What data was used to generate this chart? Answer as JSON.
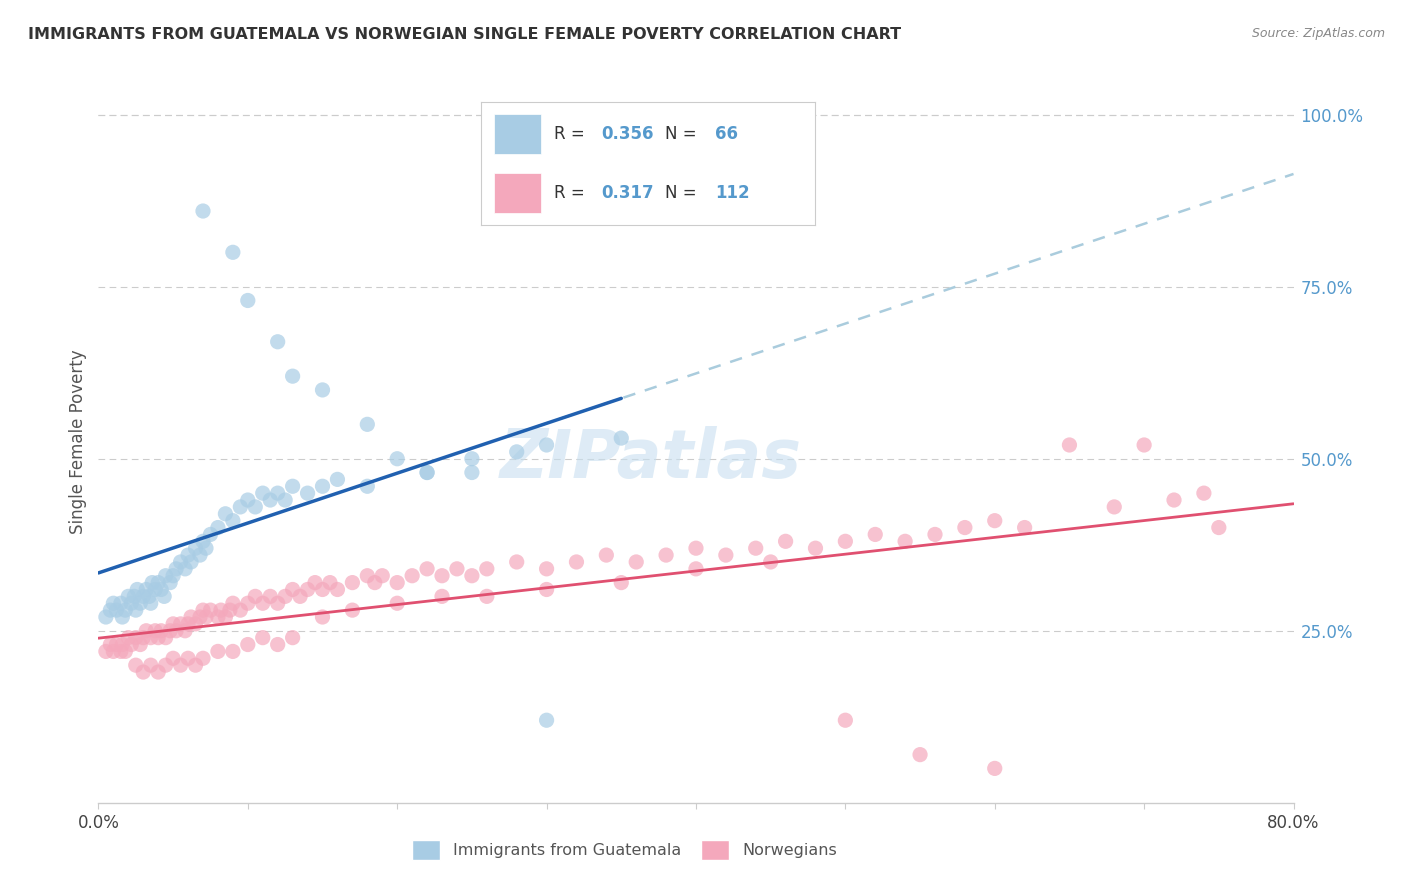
{
  "title": "IMMIGRANTS FROM GUATEMALA VS NORWEGIAN SINGLE FEMALE POVERTY CORRELATION CHART",
  "source": "Source: ZipAtlas.com",
  "ylabel": "Single Female Poverty",
  "legend_label1": "Immigrants from Guatemala",
  "legend_label2": "Norwegians",
  "legend_R1": "0.356",
  "legend_N1": "66",
  "legend_R2": "0.317",
  "legend_N2": "112",
  "color_blue": "#a8cce4",
  "color_pink": "#f4a8bc",
  "color_blue_line": "#2060b0",
  "color_pink_line": "#e05070",
  "color_dashed": "#aaccdd",
  "xlim": [
    0.0,
    0.8
  ],
  "ylim": [
    0.0,
    1.05
  ],
  "ytick_labels": [
    "25.0%",
    "50.0%",
    "75.0%",
    "100.0%"
  ],
  "ytick_values": [
    0.25,
    0.5,
    0.75,
    1.0
  ],
  "blue_x": [
    0.005,
    0.008,
    0.01,
    0.012,
    0.015,
    0.016,
    0.018,
    0.02,
    0.022,
    0.024,
    0.025,
    0.026,
    0.028,
    0.03,
    0.032,
    0.034,
    0.035,
    0.036,
    0.038,
    0.04,
    0.042,
    0.044,
    0.045,
    0.048,
    0.05,
    0.052,
    0.055,
    0.058,
    0.06,
    0.062,
    0.065,
    0.068,
    0.07,
    0.072,
    0.075,
    0.08,
    0.085,
    0.09,
    0.095,
    0.1,
    0.105,
    0.11,
    0.115,
    0.12,
    0.125,
    0.13,
    0.14,
    0.15,
    0.16,
    0.18,
    0.2,
    0.22,
    0.25,
    0.28,
    0.3,
    0.35,
    0.07,
    0.09,
    0.1,
    0.12,
    0.13,
    0.15,
    0.18,
    0.22,
    0.25,
    0.3
  ],
  "blue_y": [
    0.27,
    0.28,
    0.29,
    0.28,
    0.29,
    0.27,
    0.28,
    0.3,
    0.29,
    0.3,
    0.28,
    0.31,
    0.29,
    0.3,
    0.31,
    0.3,
    0.29,
    0.32,
    0.31,
    0.32,
    0.31,
    0.3,
    0.33,
    0.32,
    0.33,
    0.34,
    0.35,
    0.34,
    0.36,
    0.35,
    0.37,
    0.36,
    0.38,
    0.37,
    0.39,
    0.4,
    0.42,
    0.41,
    0.43,
    0.44,
    0.43,
    0.45,
    0.44,
    0.45,
    0.44,
    0.46,
    0.45,
    0.46,
    0.47,
    0.46,
    0.5,
    0.48,
    0.5,
    0.51,
    0.52,
    0.53,
    0.86,
    0.8,
    0.73,
    0.67,
    0.62,
    0.6,
    0.55,
    0.48,
    0.48,
    0.12
  ],
  "pink_x": [
    0.005,
    0.008,
    0.01,
    0.012,
    0.015,
    0.016,
    0.018,
    0.02,
    0.022,
    0.025,
    0.028,
    0.03,
    0.032,
    0.035,
    0.038,
    0.04,
    0.042,
    0.045,
    0.048,
    0.05,
    0.052,
    0.055,
    0.058,
    0.06,
    0.062,
    0.065,
    0.068,
    0.07,
    0.072,
    0.075,
    0.08,
    0.082,
    0.085,
    0.088,
    0.09,
    0.095,
    0.1,
    0.105,
    0.11,
    0.115,
    0.12,
    0.125,
    0.13,
    0.135,
    0.14,
    0.145,
    0.15,
    0.155,
    0.16,
    0.17,
    0.18,
    0.185,
    0.19,
    0.2,
    0.21,
    0.22,
    0.23,
    0.24,
    0.25,
    0.26,
    0.28,
    0.3,
    0.32,
    0.34,
    0.36,
    0.38,
    0.4,
    0.42,
    0.44,
    0.46,
    0.48,
    0.5,
    0.52,
    0.54,
    0.56,
    0.58,
    0.6,
    0.62,
    0.65,
    0.68,
    0.7,
    0.72,
    0.74,
    0.75,
    0.025,
    0.03,
    0.035,
    0.04,
    0.045,
    0.05,
    0.055,
    0.06,
    0.065,
    0.07,
    0.08,
    0.09,
    0.1,
    0.11,
    0.12,
    0.13,
    0.15,
    0.17,
    0.2,
    0.23,
    0.26,
    0.3,
    0.35,
    0.4,
    0.45,
    0.5,
    0.55,
    0.6
  ],
  "pink_y": [
    0.22,
    0.23,
    0.22,
    0.23,
    0.22,
    0.23,
    0.22,
    0.24,
    0.23,
    0.24,
    0.23,
    0.24,
    0.25,
    0.24,
    0.25,
    0.24,
    0.25,
    0.24,
    0.25,
    0.26,
    0.25,
    0.26,
    0.25,
    0.26,
    0.27,
    0.26,
    0.27,
    0.28,
    0.27,
    0.28,
    0.27,
    0.28,
    0.27,
    0.28,
    0.29,
    0.28,
    0.29,
    0.3,
    0.29,
    0.3,
    0.29,
    0.3,
    0.31,
    0.3,
    0.31,
    0.32,
    0.31,
    0.32,
    0.31,
    0.32,
    0.33,
    0.32,
    0.33,
    0.32,
    0.33,
    0.34,
    0.33,
    0.34,
    0.33,
    0.34,
    0.35,
    0.34,
    0.35,
    0.36,
    0.35,
    0.36,
    0.37,
    0.36,
    0.37,
    0.38,
    0.37,
    0.38,
    0.39,
    0.38,
    0.39,
    0.4,
    0.41,
    0.4,
    0.52,
    0.43,
    0.52,
    0.44,
    0.45,
    0.4,
    0.2,
    0.19,
    0.2,
    0.19,
    0.2,
    0.21,
    0.2,
    0.21,
    0.2,
    0.21,
    0.22,
    0.22,
    0.23,
    0.24,
    0.23,
    0.24,
    0.27,
    0.28,
    0.29,
    0.3,
    0.3,
    0.31,
    0.32,
    0.34,
    0.35,
    0.12,
    0.07,
    0.05
  ]
}
